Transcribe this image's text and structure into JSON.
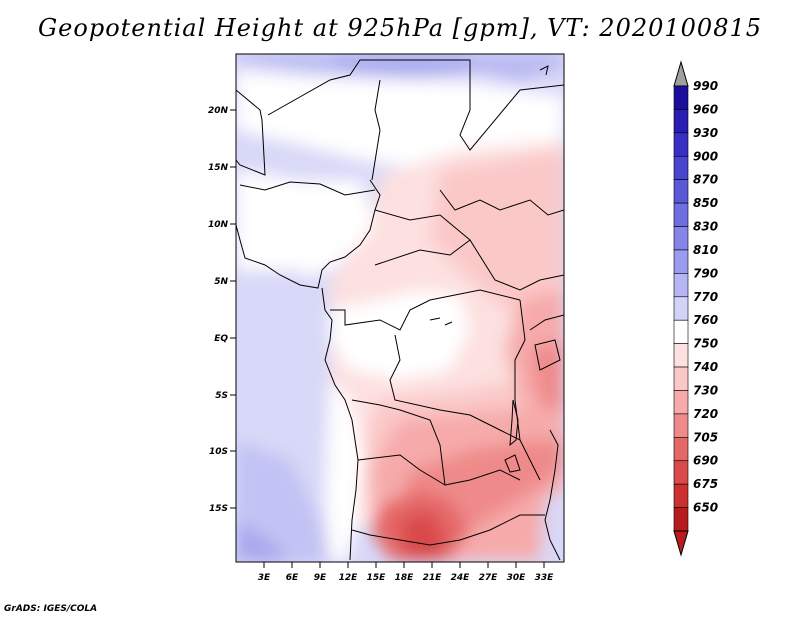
{
  "title": "Geopotential Height at 925hPa [gpm], VT: 2020100815",
  "credit": "GrADS: IGES/COLA",
  "lat_ticks": [
    "20N",
    "15N",
    "10N",
    "5N",
    "EQ",
    "5S",
    "10S",
    "15S"
  ],
  "lon_ticks": [
    "3E",
    "6E",
    "9E",
    "12E",
    "15E",
    "18E",
    "21E",
    "24E",
    "27E",
    "30E",
    "33E"
  ],
  "colorbar": {
    "levels": [
      "990",
      "960",
      "930",
      "900",
      "870",
      "850",
      "830",
      "810",
      "790",
      "770",
      "760",
      "750",
      "740",
      "730",
      "720",
      "705",
      "690",
      "675",
      "650"
    ],
    "colors": [
      "#1c0e9c",
      "#2a1db2",
      "#3a2fc4",
      "#4a44cf",
      "#5b58d8",
      "#6e6ee0",
      "#8585e8",
      "#9c9cee",
      "#b6b6f4",
      "#d3d3fa",
      "#ffffff",
      "#fde0e0",
      "#fbc8c8",
      "#f6aaaa",
      "#ef8a8a",
      "#e56868",
      "#d94a4a",
      "#cc3030",
      "#b81c1c"
    ]
  }
}
